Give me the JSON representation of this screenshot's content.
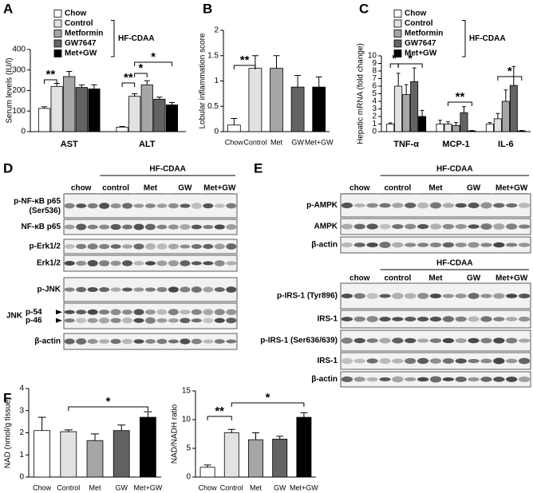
{
  "chart_data": [
    {
      "type": "bar",
      "panel": "A",
      "y_label": "Serum levels (IU/l)",
      "categories": [
        "AST",
        "ALT"
      ],
      "series": [
        {
          "name": "Chow",
          "color": "#ffffff",
          "values": [
            113,
            22
          ],
          "errors": [
            8,
            3
          ]
        },
        {
          "name": "Control",
          "color": "#e2e2e2",
          "values": [
            220,
            172
          ],
          "errors": [
            15,
            12
          ]
        },
        {
          "name": "Metformin",
          "color": "#a6a6a6",
          "values": [
            268,
            228
          ],
          "errors": [
            25,
            20
          ]
        },
        {
          "name": "GW7647",
          "color": "#636363",
          "values": [
            215,
            158
          ],
          "errors": [
            12,
            10
          ]
        },
        {
          "name": "Met+GW",
          "color": "#000000",
          "values": [
            208,
            130
          ],
          "errors": [
            20,
            12
          ]
        }
      ],
      "legend_group": "HF-CDAA",
      "ylim": [
        0,
        400
      ],
      "yticks": [
        0,
        100,
        200,
        300,
        400
      ],
      "annotations": [
        "**",
        "**",
        "*",
        "*"
      ]
    },
    {
      "type": "bar",
      "panel": "B",
      "y_label": "Lobular inflammation score",
      "categories": [
        "Chow",
        "Control",
        "Met",
        "GW",
        "Met+GW"
      ],
      "values": [
        0.13,
        1.25,
        1.25,
        0.88,
        0.88
      ],
      "errors": [
        0.13,
        0.25,
        0.25,
        0.23,
        0.2
      ],
      "colors": [
        "#ffffff",
        "#e2e2e2",
        "#a6a6a6",
        "#636363",
        "#000000"
      ],
      "ylim": [
        0,
        2
      ],
      "yticks": [
        0,
        0.5,
        1,
        1.5,
        2
      ],
      "annotations": [
        "**"
      ]
    },
    {
      "type": "bar",
      "panel": "C",
      "y_label": "Hepatic mRNA (fold change)",
      "categories": [
        "TNF-α",
        "MCP-1",
        "IL-6"
      ],
      "series": [
        {
          "name": "Chow",
          "color": "#ffffff",
          "values": [
            1,
            1,
            1
          ],
          "errors": [
            0.15,
            0.5,
            0.2
          ]
        },
        {
          "name": "Control",
          "color": "#e2e2e2",
          "values": [
            6,
            1,
            1.7
          ],
          "errors": [
            1.7,
            0.3,
            0.7
          ]
        },
        {
          "name": "Metformin",
          "color": "#a6a6a6",
          "values": [
            4.9,
            0.8,
            4
          ],
          "errors": [
            1.3,
            0.4,
            1.5
          ]
        },
        {
          "name": "GW7647",
          "color": "#636363",
          "values": [
            6.6,
            2.5,
            6.1
          ],
          "errors": [
            1.8,
            0.8,
            2.5
          ]
        },
        {
          "name": "Met+GW",
          "color": "#000000",
          "values": [
            2,
            0.1,
            0.1
          ],
          "errors": [
            0.8,
            0.05,
            0.05
          ]
        }
      ],
      "legend_group": "HF-CDAA",
      "ylim": [
        0,
        10
      ],
      "yticks": [
        0,
        1,
        2,
        3,
        4,
        5,
        6,
        7,
        8,
        9,
        10
      ],
      "annotations": [
        "*",
        "*",
        "**",
        "*"
      ]
    },
    {
      "type": "bar",
      "panel": "F",
      "y_label": "NAD (nmol/g tissue)",
      "categories": [
        "Chow",
        "Control",
        "Met",
        "GW",
        "Met+GW"
      ],
      "values": [
        2.1,
        2.05,
        1.65,
        2.1,
        2.7
      ],
      "errors": [
        0.6,
        0.08,
        0.3,
        0.25,
        0.25
      ],
      "colors": [
        "#ffffff",
        "#e2e2e2",
        "#a6a6a6",
        "#636363",
        "#000000"
      ],
      "ylim": [
        0,
        4
      ],
      "yticks": [
        0,
        1,
        2,
        3,
        4
      ],
      "annotations": [
        "*"
      ]
    },
    {
      "type": "bar",
      "y_label": "NAD/NADH ratio",
      "categories": [
        "Chow",
        "Control",
        "Met",
        "GW",
        "Met+GW"
      ],
      "values": [
        1.7,
        7.7,
        6.5,
        6.6,
        10.4
      ],
      "errors": [
        0.4,
        0.6,
        1.2,
        0.5,
        0.8
      ],
      "colors": [
        "#ffffff",
        "#e2e2e2",
        "#a6a6a6",
        "#636363",
        "#000000"
      ],
      "ylim": [
        0,
        15
      ],
      "yticks": [
        0,
        5,
        10,
        15
      ],
      "annotations": [
        "**",
        "*"
      ]
    }
  ],
  "blots": {
    "D": {
      "panel": "D",
      "blocks": [
        {
          "group_header": "HF-CDAA",
          "groups": [
            "chow",
            "control",
            "Met",
            "GW",
            "Met+GW"
          ],
          "rows": [
            "p-NF-κB p65\n(Ser536)",
            "NF-κB p65",
            "p-Erk1/2",
            "Erk1/2",
            "p-JNK",
            "JNK",
            "β-actin"
          ],
          "sublabels": [
            "p-54",
            "p-46"
          ]
        }
      ]
    },
    "E": {
      "panel": "E",
      "blocks": [
        {
          "group_header": "HF-CDAA",
          "groups": [
            "chow",
            "control",
            "Met",
            "GW",
            "Met+GW"
          ],
          "rows": [
            "p-AMPK",
            "AMPK",
            "β-actin"
          ]
        },
        {
          "group_header": "HF-CDAA",
          "groups": [
            "chow",
            "control",
            "Met",
            "GW",
            "Met+GW"
          ],
          "rows": [
            "p-IRS-1 (Tyr896)",
            "IRS-1",
            "p-IRS-1 (Ser636/639)",
            "IRS-1",
            "β-actin"
          ]
        }
      ]
    }
  }
}
